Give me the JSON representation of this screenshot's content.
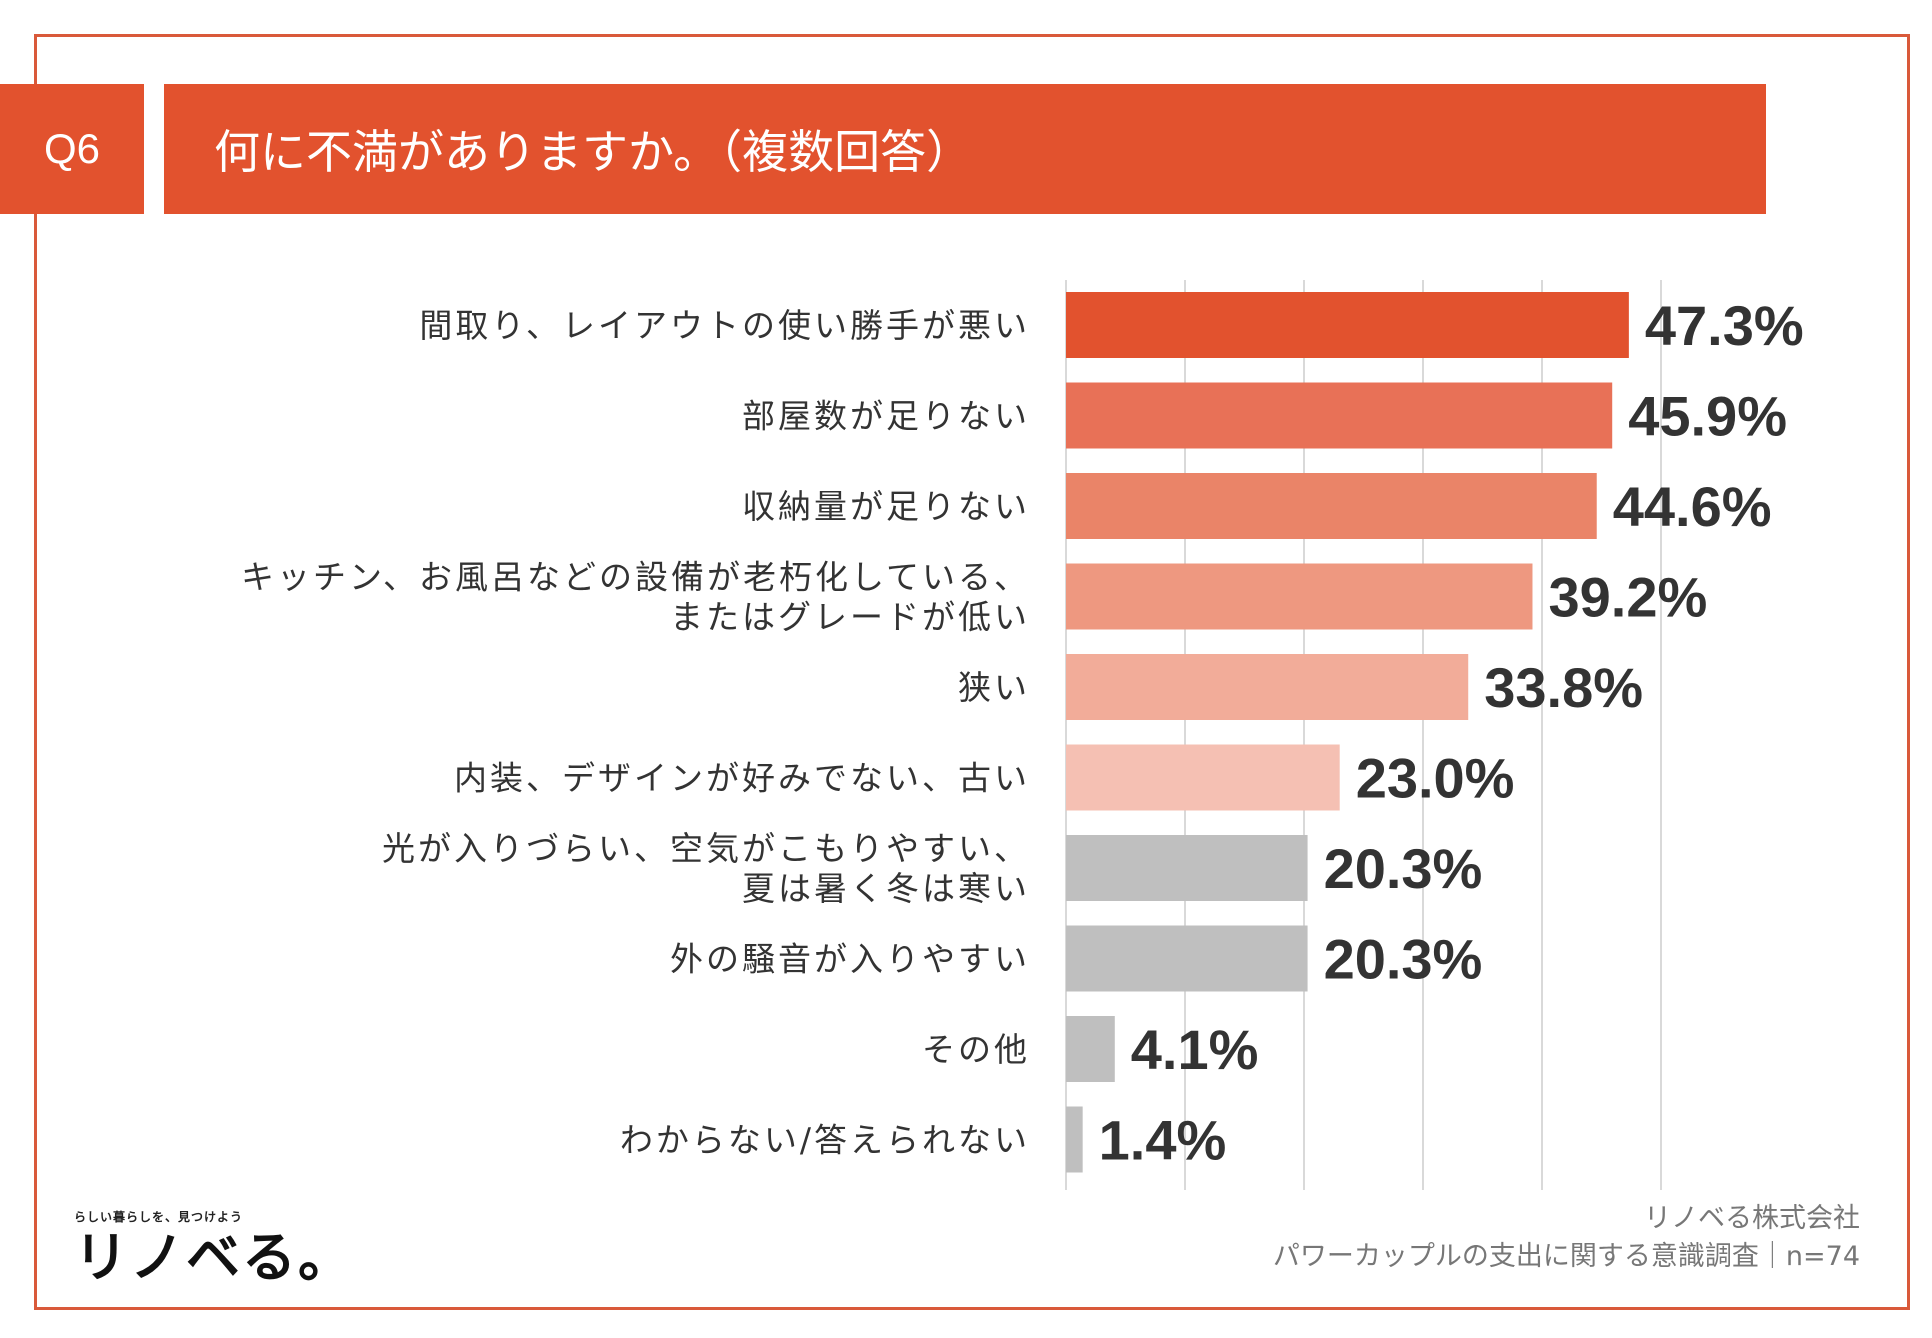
{
  "header": {
    "q_label": "Q6",
    "title": "何に不満がありますか。（複数回答）"
  },
  "colors": {
    "frame": "#d9593a",
    "header": "#e2522e",
    "bars": [
      "#e2522e",
      "#e87157",
      "#ea8468",
      "#ee9880",
      "#f2ac99",
      "#f5c0b3",
      "#bfbfbf",
      "#bfbfbf",
      "#bfbfbf",
      "#bfbfbf"
    ],
    "grid": "#d9d9d9"
  },
  "chart_data": {
    "type": "bar",
    "orientation": "horizontal",
    "title": "何に不満がありますか。（複数回答）",
    "categories": [
      [
        "間取り、レイアウトの使い勝手が悪い"
      ],
      [
        "部屋数が足りない"
      ],
      [
        "収納量が足りない"
      ],
      [
        "キッチン、お風呂などの設備が老朽化している、",
        "またはグレードが低い"
      ],
      [
        "狭い"
      ],
      [
        "内装、デザインが好みでない、古い"
      ],
      [
        "光が入りづらい、空気がこもりやすい、",
        "夏は暑く冬は寒い"
      ],
      [
        "外の騒音が入りやすい"
      ],
      [
        "その他"
      ],
      [
        "わからない/答えられない"
      ]
    ],
    "values": [
      47.3,
      45.9,
      44.6,
      39.2,
      33.8,
      23.0,
      20.3,
      20.3,
      4.1,
      1.4
    ],
    "value_labels": [
      "47.3%",
      "45.9%",
      "44.6%",
      "39.2%",
      "33.8%",
      "23.0%",
      "20.3%",
      "20.3%",
      "4.1%",
      "1.4%"
    ],
    "xlim": [
      0,
      50
    ],
    "grid_step": 10,
    "grid": true,
    "xlabel": "",
    "ylabel": ""
  },
  "footer": {
    "tagline": "らしい暮らしを、見つけよう",
    "logo_text": "リノベる。",
    "company": "リノベる株式会社",
    "survey": "パワーカップルの支出に関する意識調査｜n=74"
  }
}
